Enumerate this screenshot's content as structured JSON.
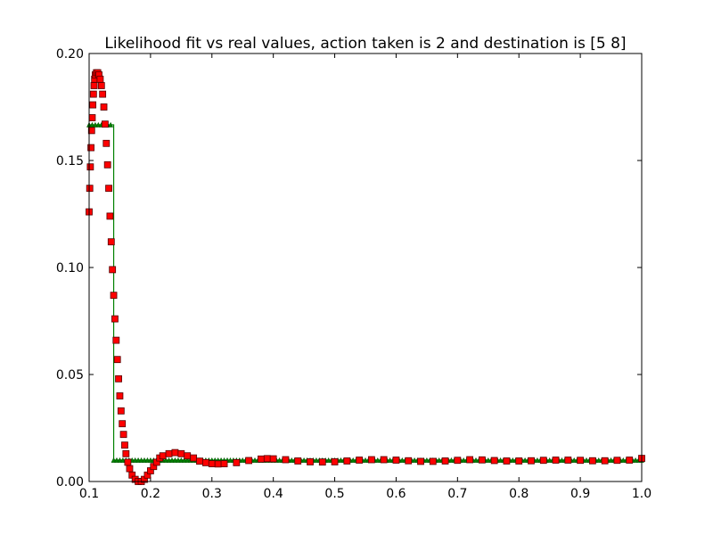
{
  "chart_data": {
    "type": "line",
    "title": "Likelihood fit vs real values, action taken is 2 and destination is [5 8]",
    "xlim": [
      0.1,
      1.0
    ],
    "ylim": [
      0.0,
      0.2
    ],
    "x_ticks": [
      "0.1",
      "0.2",
      "0.3",
      "0.4",
      "0.5",
      "0.6",
      "0.7",
      "0.8",
      "0.9",
      "1.0"
    ],
    "y_ticks": [
      "0.00",
      "0.05",
      "0.10",
      "0.15",
      "0.20"
    ],
    "grid": false,
    "legend": "none",
    "series": [
      {
        "color": "#008000",
        "marker": "triangle",
        "style": "step",
        "points": [
          [
            0.1,
            0.1667
          ],
          [
            0.14,
            0.1667
          ],
          [
            0.14,
            0.01
          ],
          [
            1.0,
            0.01
          ]
        ]
      },
      {
        "color": "#ff0000",
        "marker": "square",
        "style": "markers",
        "points": [
          [
            0.1,
            0.126
          ],
          [
            0.101,
            0.137
          ],
          [
            0.102,
            0.147
          ],
          [
            0.103,
            0.156
          ],
          [
            0.104,
            0.164
          ],
          [
            0.105,
            0.17
          ],
          [
            0.106,
            0.176
          ],
          [
            0.107,
            0.181
          ],
          [
            0.108,
            0.185
          ],
          [
            0.109,
            0.188
          ],
          [
            0.11,
            0.19
          ],
          [
            0.112,
            0.191
          ],
          [
            0.114,
            0.191
          ],
          [
            0.116,
            0.19
          ],
          [
            0.118,
            0.188
          ],
          [
            0.12,
            0.185
          ],
          [
            0.122,
            0.181
          ],
          [
            0.124,
            0.175
          ],
          [
            0.126,
            0.167
          ],
          [
            0.128,
            0.158
          ],
          [
            0.13,
            0.148
          ],
          [
            0.132,
            0.137
          ],
          [
            0.134,
            0.124
          ],
          [
            0.136,
            0.112
          ],
          [
            0.138,
            0.099
          ],
          [
            0.14,
            0.087
          ],
          [
            0.142,
            0.076
          ],
          [
            0.144,
            0.066
          ],
          [
            0.146,
            0.057
          ],
          [
            0.148,
            0.048
          ],
          [
            0.15,
            0.04
          ],
          [
            0.152,
            0.033
          ],
          [
            0.154,
            0.027
          ],
          [
            0.156,
            0.022
          ],
          [
            0.158,
            0.017
          ],
          [
            0.16,
            0.013
          ],
          [
            0.163,
            0.009
          ],
          [
            0.166,
            0.006
          ],
          [
            0.17,
            0.003
          ],
          [
            0.175,
            0.001
          ],
          [
            0.18,
            0.0
          ],
          [
            0.185,
            0.0
          ],
          [
            0.19,
            0.001
          ],
          [
            0.195,
            0.003
          ],
          [
            0.2,
            0.005
          ],
          [
            0.205,
            0.007
          ],
          [
            0.21,
            0.009
          ],
          [
            0.215,
            0.011
          ],
          [
            0.22,
            0.012
          ],
          [
            0.23,
            0.013
          ],
          [
            0.24,
            0.0135
          ],
          [
            0.25,
            0.013
          ],
          [
            0.26,
            0.012
          ],
          [
            0.27,
            0.011
          ],
          [
            0.28,
            0.0095
          ],
          [
            0.29,
            0.0088
          ],
          [
            0.3,
            0.0083
          ],
          [
            0.31,
            0.0082
          ],
          [
            0.32,
            0.0083
          ],
          [
            0.34,
            0.0088
          ],
          [
            0.36,
            0.0098
          ],
          [
            0.38,
            0.0105
          ],
          [
            0.39,
            0.0107
          ],
          [
            0.4,
            0.0106
          ],
          [
            0.42,
            0.0102
          ],
          [
            0.44,
            0.0096
          ],
          [
            0.46,
            0.0092
          ],
          [
            0.48,
            0.0091
          ],
          [
            0.5,
            0.0092
          ],
          [
            0.52,
            0.0096
          ],
          [
            0.54,
            0.01
          ],
          [
            0.56,
            0.0102
          ],
          [
            0.58,
            0.0102
          ],
          [
            0.6,
            0.01
          ],
          [
            0.62,
            0.0097
          ],
          [
            0.64,
            0.0094
          ],
          [
            0.66,
            0.0094
          ],
          [
            0.68,
            0.0096
          ],
          [
            0.7,
            0.0099
          ],
          [
            0.72,
            0.0102
          ],
          [
            0.74,
            0.0101
          ],
          [
            0.76,
            0.0098
          ],
          [
            0.78,
            0.0096
          ],
          [
            0.8,
            0.0096
          ],
          [
            0.82,
            0.0097
          ],
          [
            0.84,
            0.0099
          ],
          [
            0.86,
            0.01
          ],
          [
            0.88,
            0.01
          ],
          [
            0.9,
            0.0099
          ],
          [
            0.92,
            0.0097
          ],
          [
            0.94,
            0.0097
          ],
          [
            0.96,
            0.0099
          ],
          [
            0.98,
            0.01
          ],
          [
            1.0,
            0.0108
          ]
        ]
      }
    ]
  }
}
